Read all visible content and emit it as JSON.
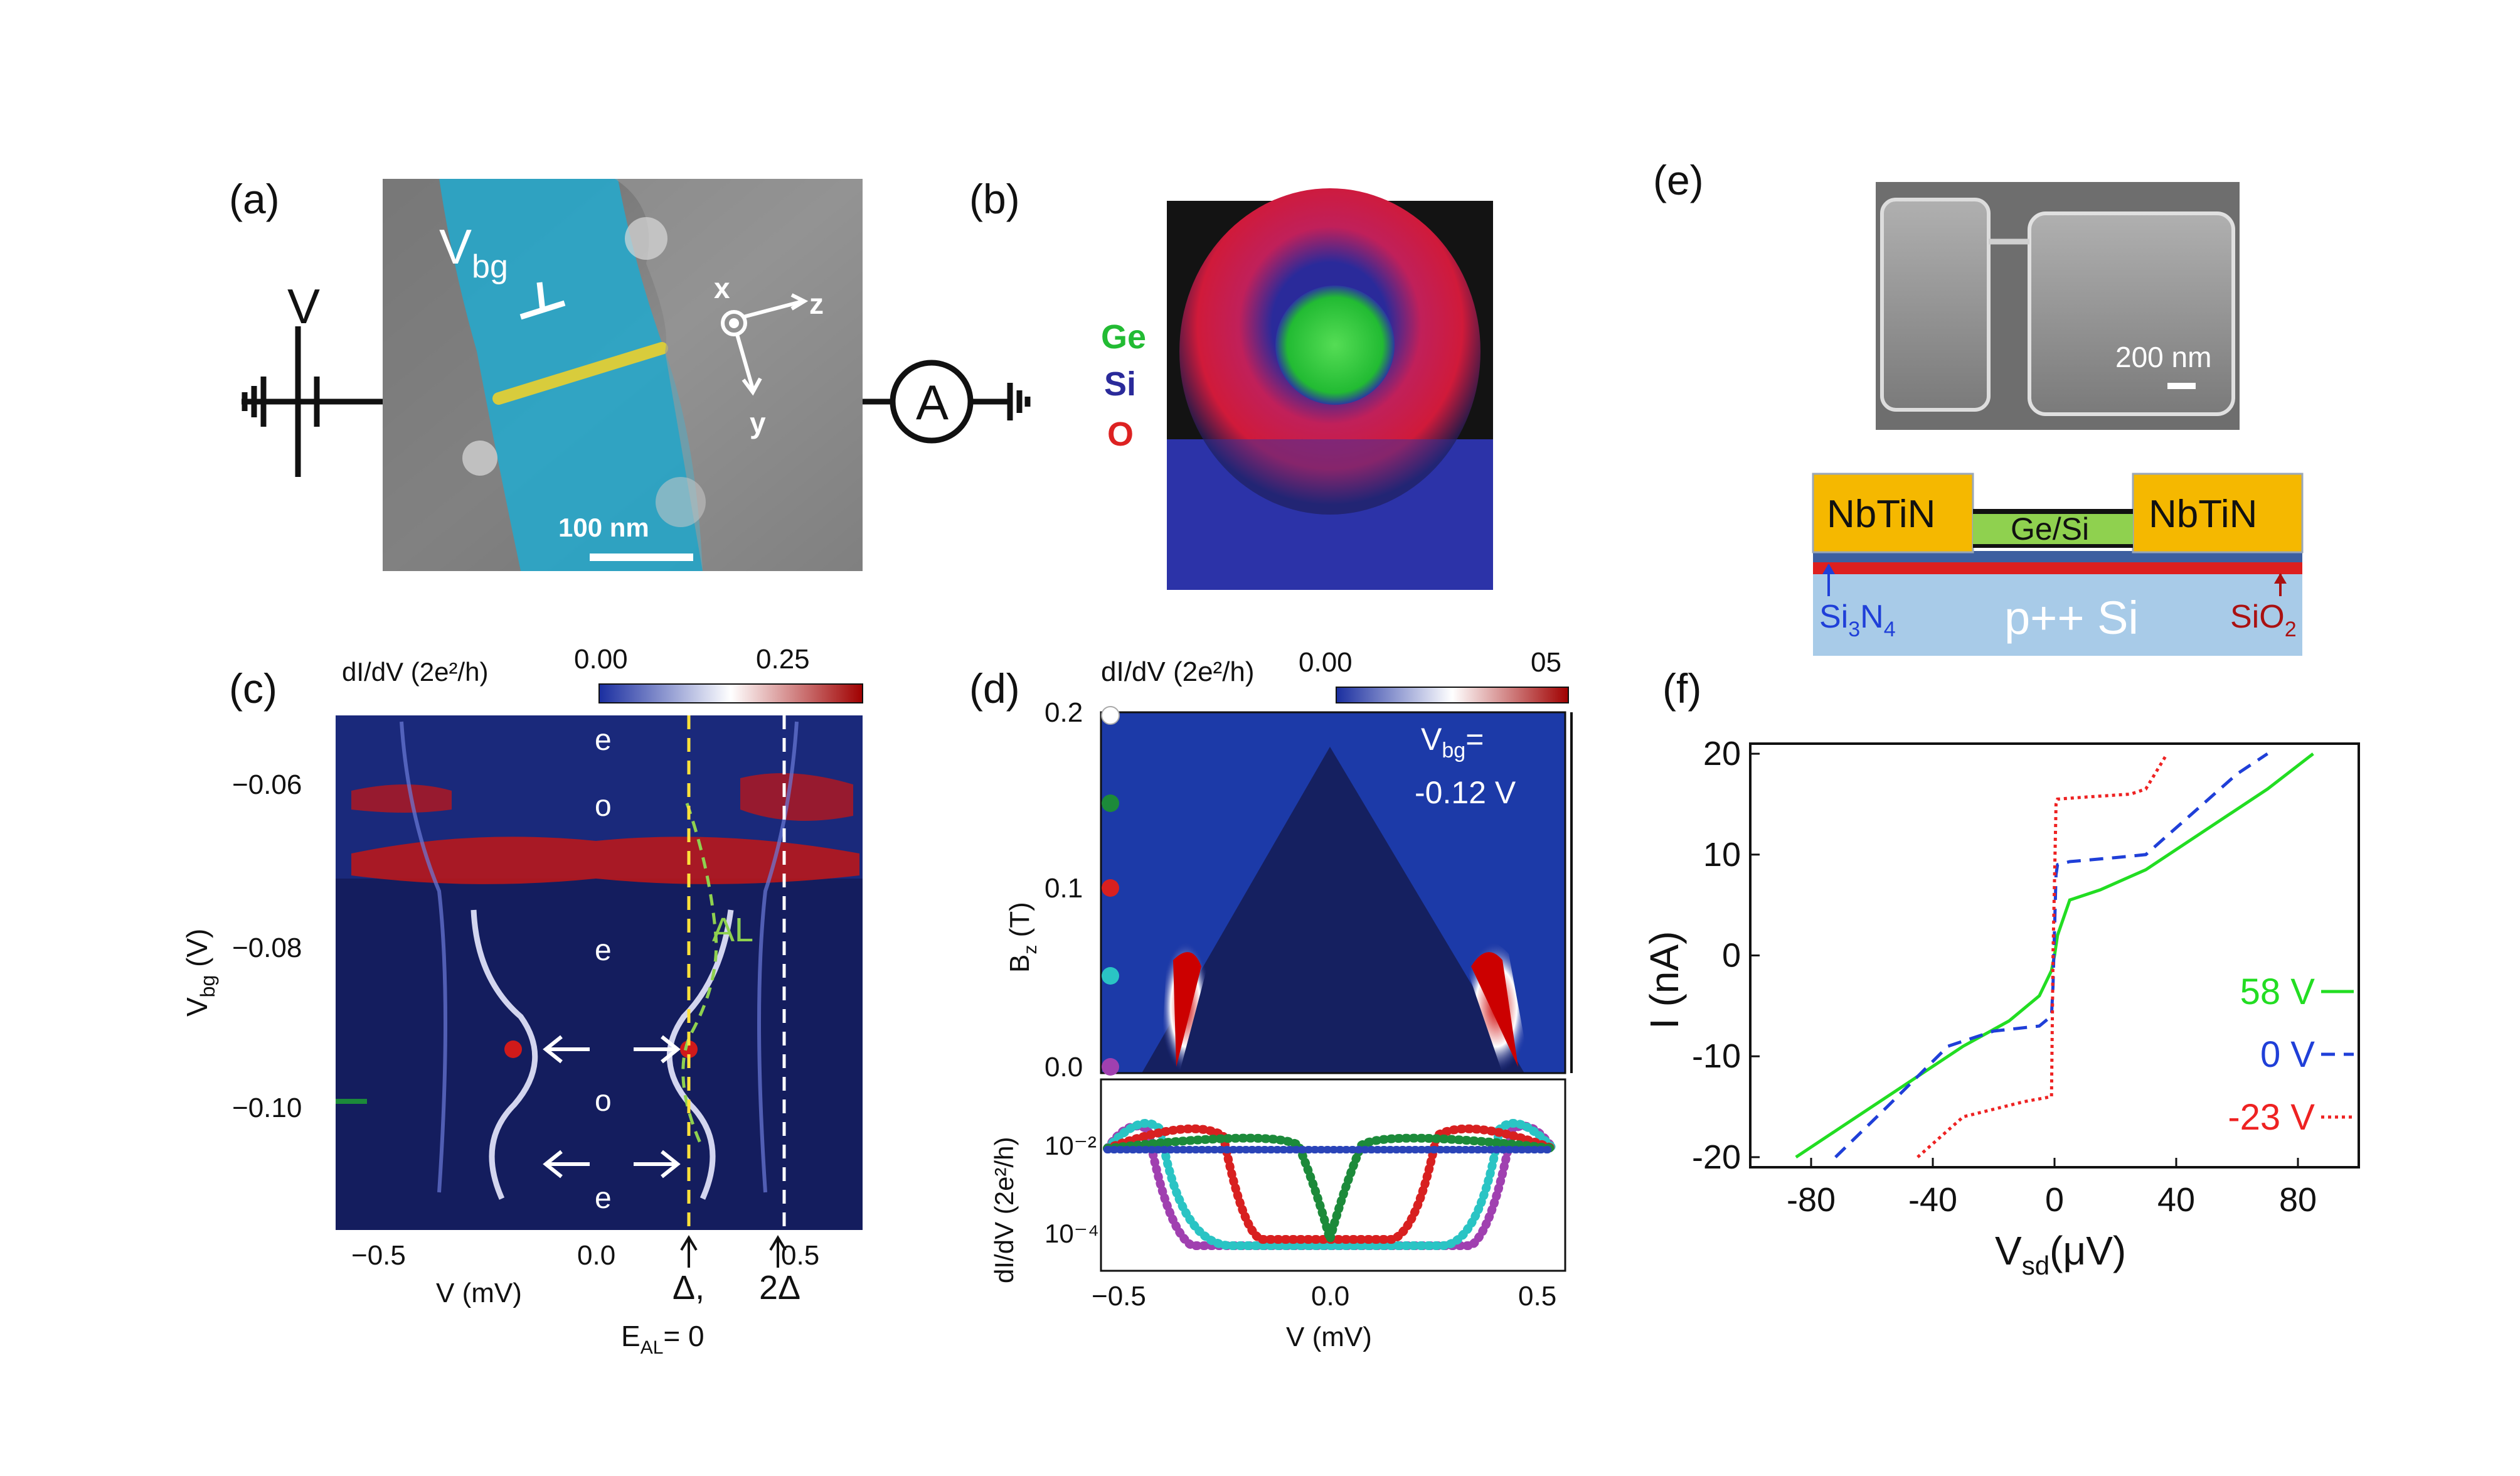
{
  "panel_labels": {
    "a": "(a)",
    "b": "(b)",
    "c": "(c)",
    "d": "(d)",
    "e": "(e)",
    "f": "(f)"
  },
  "colors": {
    "nanowire_overlay": "#29a6c8",
    "wire": "#d8cc3c",
    "ge": "#22bb33",
    "si": "#2a2a9a",
    "o": "#dd2222",
    "nbtin": "#f5b800",
    "gesi_layer": "#8fd14f",
    "si_sub": "#a8cbe8",
    "sio2": "#dd1f1f",
    "cmap_low": "#ffffff",
    "cmap_mid": "#1a2ea0",
    "cmap_high": "#b00000"
  },
  "panel_a": {
    "vbg_main": "V",
    "vbg_sub": "bg",
    "battery_label": "V",
    "ammeter_label": "A",
    "axis_x": "x",
    "axis_z": "z",
    "axis_y": "y",
    "scalebar": "100 nm"
  },
  "panel_b": {
    "legend": [
      {
        "label": "Ge",
        "color": "#22bb33"
      },
      {
        "label": "Si",
        "color": "#2a2a9a"
      },
      {
        "label": "O",
        "color": "#dd2222"
      }
    ]
  },
  "panel_c": {
    "colorbar_title": "dI/dV (2e²/h)",
    "colorbar_min": "0.00",
    "colorbar_max": "0.25",
    "ylabel_main": "V",
    "ylabel_sub": "bg",
    "ylabel_unit": " (V)",
    "yticks": [
      "−0.06",
      "−0.08",
      "−0.10"
    ],
    "xticks": [
      "−0.5",
      "0.0",
      "0.5"
    ],
    "xlabel": "V  (mV)",
    "state_labels": [
      "e",
      "o",
      "e",
      "o",
      "e"
    ],
    "al_label": "AL",
    "delta_label": "Δ,",
    "ed_main": "E",
    "ed_sub": "AL",
    "ed_rest": "= 0",
    "two_delta_label": "2Δ"
  },
  "panel_d": {
    "colorbar_title": "dI/dV (2e²/h)",
    "colorbar_min": "0.00",
    "colorbar_max": "05",
    "ylabel_main": "B",
    "ylabel_sub": "z",
    "ylabel_unit": " (T)",
    "yticks": [
      "0.2",
      "0.1",
      "0.0"
    ],
    "vbg_main": "V",
    "vbg_sub": "bg",
    "vbg_eq": "=",
    "vbg_value": "-0.12 V",
    "lower_ylabel": "dI/dV (2e²/h)",
    "lower_yticks": [
      "10⁻²",
      "10⁻⁴"
    ],
    "xticks": [
      "−0.5",
      "0.0",
      "0.5"
    ],
    "xlabel": "V  (mV)",
    "dot_colors": [
      "#ffffff",
      "#1c8a3a",
      "#d82020",
      "#2ac4c4",
      "#a040b0"
    ]
  },
  "panel_e": {
    "scalebar": "200 nm",
    "left_contact": "NbTiN",
    "right_contact": "NbTiN",
    "wire_label": "Ge/Si",
    "si3n4_main": "Si",
    "si3n4_sub1": "3",
    "si3n4_mid": "N",
    "si3n4_sub2": "4",
    "substrate": "p++ Si",
    "sio2_main": "SiO",
    "sio2_sub": "2"
  },
  "chart_data": {
    "type": "line",
    "title": "",
    "xlabel_main": "V",
    "xlabel_sub": "sd",
    "xlabel_unit": "(μV)",
    "ylabel": "I (nA)",
    "xlim": [
      -100,
      100
    ],
    "ylim": [
      -21,
      21
    ],
    "xticks": [
      -80,
      -40,
      0,
      40,
      80
    ],
    "yticks": [
      20,
      10,
      0,
      -10,
      -20
    ],
    "xtick_labels": [
      "-80",
      "-40",
      "0",
      "40",
      "80"
    ],
    "ytick_labels": [
      "20",
      "10",
      "0",
      "-10",
      "-20"
    ],
    "series": [
      {
        "name": "58 V",
        "color": "#22dd22",
        "style": "solid",
        "x": [
          -85,
          -70,
          -50,
          -30,
          -15,
          -5,
          -1,
          0,
          1,
          5,
          15,
          30,
          50,
          70,
          85
        ],
        "y": [
          -20,
          -17,
          -13,
          -9,
          -6.5,
          -4,
          -1.5,
          0,
          2,
          5.5,
          6.5,
          8.5,
          12.5,
          16.5,
          20
        ]
      },
      {
        "name": "0 V",
        "color": "#1f3fd8",
        "style": "dashed",
        "x": [
          -72,
          -55,
          -35,
          -20,
          -5,
          -1,
          -0.5,
          0.5,
          1,
          5,
          20,
          30,
          45,
          60,
          70
        ],
        "y": [
          -20,
          -15,
          -9,
          -7.5,
          -7,
          -6,
          -3,
          8,
          9,
          9.3,
          9.7,
          10,
          14,
          18,
          20
        ]
      },
      {
        "name": "-23 V",
        "color": "#ee2222",
        "style": "dotted",
        "x": [
          -45,
          -30,
          -10,
          -1,
          -0.5,
          0.5,
          1,
          10,
          25,
          30,
          37
        ],
        "y": [
          -20,
          -16,
          -14.5,
          -14,
          0,
          15,
          15.5,
          15.7,
          16,
          16.5,
          20
        ]
      }
    ]
  }
}
